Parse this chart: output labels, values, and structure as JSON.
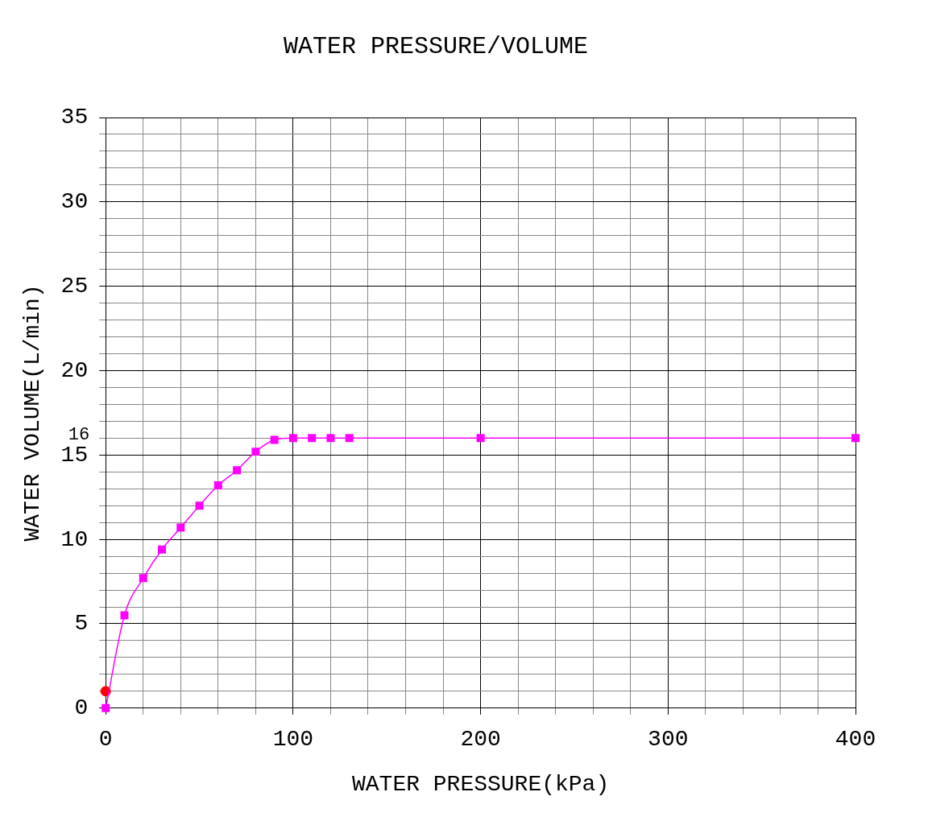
{
  "chart_data": {
    "type": "line",
    "title": "WATER PRESSURE/VOLUME",
    "xlabel": "WATER PRESSURE(kPa)",
    "ylabel": "WATER VOLUME(L/min)",
    "xlim": [
      0,
      400
    ],
    "ylim": [
      0,
      35
    ],
    "xticks": [
      0,
      {
        "value": 20,
        "label": null
      },
      {
        "value": 40,
        "label": null
      },
      {
        "value": 60,
        "label": null
      },
      {
        "value": 80,
        "label": null
      },
      100,
      {
        "value": 120,
        "label": null
      },
      {
        "value": 140,
        "label": null
      },
      {
        "value": 160,
        "label": null
      },
      {
        "value": 180,
        "label": null
      },
      200,
      {
        "value": 220,
        "label": null
      },
      {
        "value": 240,
        "label": null
      },
      {
        "value": 260,
        "label": null
      },
      {
        "value": 280,
        "label": null
      },
      300,
      {
        "value": 320,
        "label": null
      },
      {
        "value": 340,
        "label": null
      },
      {
        "value": 360,
        "label": null
      },
      {
        "value": 380,
        "label": null
      },
      400
    ],
    "yticks": [
      0,
      {
        "value": 1,
        "label": null
      },
      {
        "value": 2,
        "label": null
      },
      {
        "value": 3,
        "label": null
      },
      {
        "value": 4,
        "label": null
      },
      5,
      {
        "value": 6,
        "label": null
      },
      {
        "value": 7,
        "label": null
      },
      {
        "value": 8,
        "label": null
      },
      {
        "value": 9,
        "label": null
      },
      10,
      {
        "value": 11,
        "label": null
      },
      {
        "value": 12,
        "label": null
      },
      {
        "value": 13,
        "label": null
      },
      {
        "value": 14,
        "label": null
      },
      15,
      {
        "value": 16,
        "label": null
      },
      {
        "value": 17,
        "label": null
      },
      {
        "value": 18,
        "label": null
      },
      {
        "value": 19,
        "label": null
      },
      20,
      {
        "value": 21,
        "label": null
      },
      {
        "value": 22,
        "label": null
      },
      {
        "value": 23,
        "label": null
      },
      {
        "value": 24,
        "label": null
      },
      25,
      {
        "value": 26,
        "label": null
      },
      {
        "value": 27,
        "label": null
      },
      {
        "value": 28,
        "label": null
      },
      {
        "value": 29,
        "label": null
      },
      30,
      {
        "value": 31,
        "label": null
      },
      {
        "value": 32,
        "label": null
      },
      {
        "value": 33,
        "label": null
      },
      {
        "value": 34,
        "label": null
      },
      35
    ],
    "grid": true,
    "legend": false,
    "marker": "square",
    "line_style": "solid",
    "annotations": [
      "16"
    ],
    "series": [
      {
        "color": "#ff00ff",
        "x": [
          0,
          10,
          20,
          30,
          40,
          50,
          60,
          70,
          80,
          90,
          100,
          110,
          120,
          130,
          200,
          400
        ],
        "values": [
          0,
          5.5,
          7.7,
          9.4,
          10.7,
          12.0,
          13.2,
          14.1,
          15.2,
          15.9,
          16,
          16,
          16,
          16,
          16,
          16
        ]
      },
      {
        "type": "scatter",
        "marker": "circle",
        "color": "#ff0000",
        "x": [
          0
        ],
        "values": [
          1
        ]
      }
    ]
  }
}
